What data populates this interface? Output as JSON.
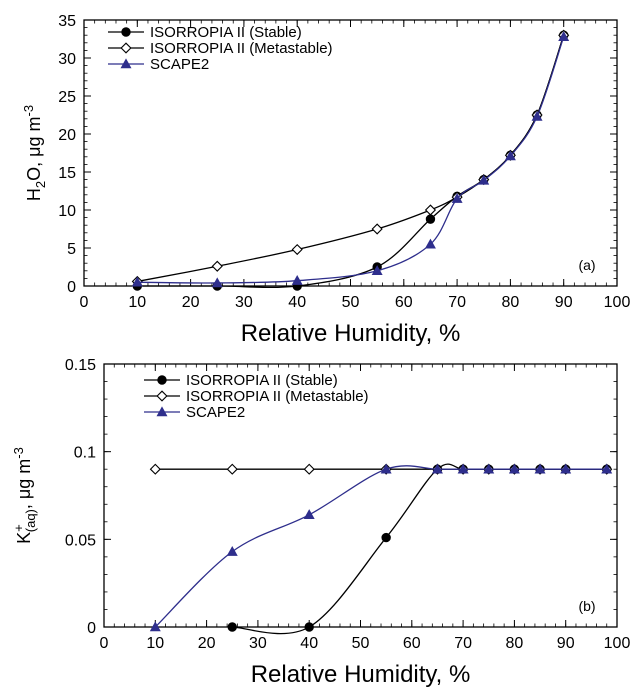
{
  "chart_data": [
    {
      "panel": "(a)",
      "type": "line",
      "xlabel": "Relative Humidity, %",
      "ylabel": "H2O, μg m-3",
      "ylabel_parts": {
        "base": "H",
        "sub": "2",
        "rest": "O, μg m",
        "sup": "-3"
      },
      "xlim": [
        0,
        100
      ],
      "ylim": [
        0,
        35
      ],
      "xticks": [
        0,
        10,
        20,
        30,
        40,
        50,
        60,
        70,
        80,
        90,
        100
      ],
      "yticks": [
        0,
        5,
        10,
        15,
        20,
        25,
        30,
        35
      ],
      "legend_position": "top-left",
      "series": [
        {
          "name": "ISORROPIA II (Stable)",
          "marker": "circle-filled",
          "color": "#000000",
          "x": [
            10,
            25,
            40,
            55,
            65,
            70,
            75,
            80,
            85,
            90
          ],
          "y": [
            0,
            0,
            0,
            2.5,
            8.8,
            11.8,
            14.0,
            17.2,
            22.5,
            33.0
          ]
        },
        {
          "name": "ISORROPIA II (Metastable)",
          "marker": "diamond-open",
          "color": "#000000",
          "x": [
            10,
            25,
            40,
            55,
            65,
            70,
            75,
            80,
            85,
            90
          ],
          "y": [
            0.6,
            2.6,
            4.8,
            7.5,
            10.0,
            11.7,
            14.0,
            17.2,
            22.5,
            33.0
          ]
        },
        {
          "name": "SCAPE2",
          "marker": "triangle-filled",
          "color": "#2e2e8c",
          "x": [
            10,
            25,
            40,
            55,
            65,
            70,
            75,
            80,
            85,
            90
          ],
          "y": [
            0.5,
            0.4,
            0.7,
            2.0,
            5.5,
            11.5,
            13.9,
            17.1,
            22.3,
            32.8
          ]
        }
      ],
      "annotation": "(a)"
    },
    {
      "panel": "(b)",
      "type": "line",
      "xlabel": "Relative Humidity, %",
      "ylabel": "K+(aq), μg m-3",
      "ylabel_parts": {
        "base": "K",
        "sup1": "+",
        "sub": "(aq)",
        "rest": ", μg m",
        "sup": "-3"
      },
      "xlim": [
        0,
        100
      ],
      "ylim": [
        0,
        0.15
      ],
      "xticks": [
        0,
        10,
        20,
        30,
        40,
        50,
        60,
        70,
        80,
        90,
        100
      ],
      "yticks": [
        0,
        0.05,
        0.1,
        0.15
      ],
      "ytick_labels": [
        "0",
        "0.05",
        "0.1",
        "0.15"
      ],
      "legend_position": "top-left",
      "series": [
        {
          "name": "ISORROPIA II (Stable)",
          "marker": "circle-filled",
          "color": "#000000",
          "x": [
            25,
            40,
            55,
            65,
            70,
            75,
            80,
            85,
            90,
            98
          ],
          "y": [
            0,
            0,
            0.051,
            0.09,
            0.09,
            0.09,
            0.09,
            0.09,
            0.09,
            0.09
          ]
        },
        {
          "name": "ISORROPIA II (Metastable)",
          "marker": "diamond-open",
          "color": "#000000",
          "x": [
            10,
            25,
            40,
            55,
            65,
            70,
            75,
            80,
            85,
            90,
            98
          ],
          "y": [
            0.09,
            0.09,
            0.09,
            0.09,
            0.09,
            0.09,
            0.09,
            0.09,
            0.09,
            0.09,
            0.09
          ]
        },
        {
          "name": "SCAPE2",
          "marker": "triangle-filled",
          "color": "#2e2e8c",
          "x": [
            10,
            25,
            40,
            55,
            65,
            70,
            75,
            80,
            85,
            90,
            98
          ],
          "y": [
            0,
            0.043,
            0.064,
            0.09,
            0.09,
            0.09,
            0.09,
            0.09,
            0.09,
            0.09,
            0.09
          ]
        }
      ],
      "annotation": "(b)"
    }
  ]
}
